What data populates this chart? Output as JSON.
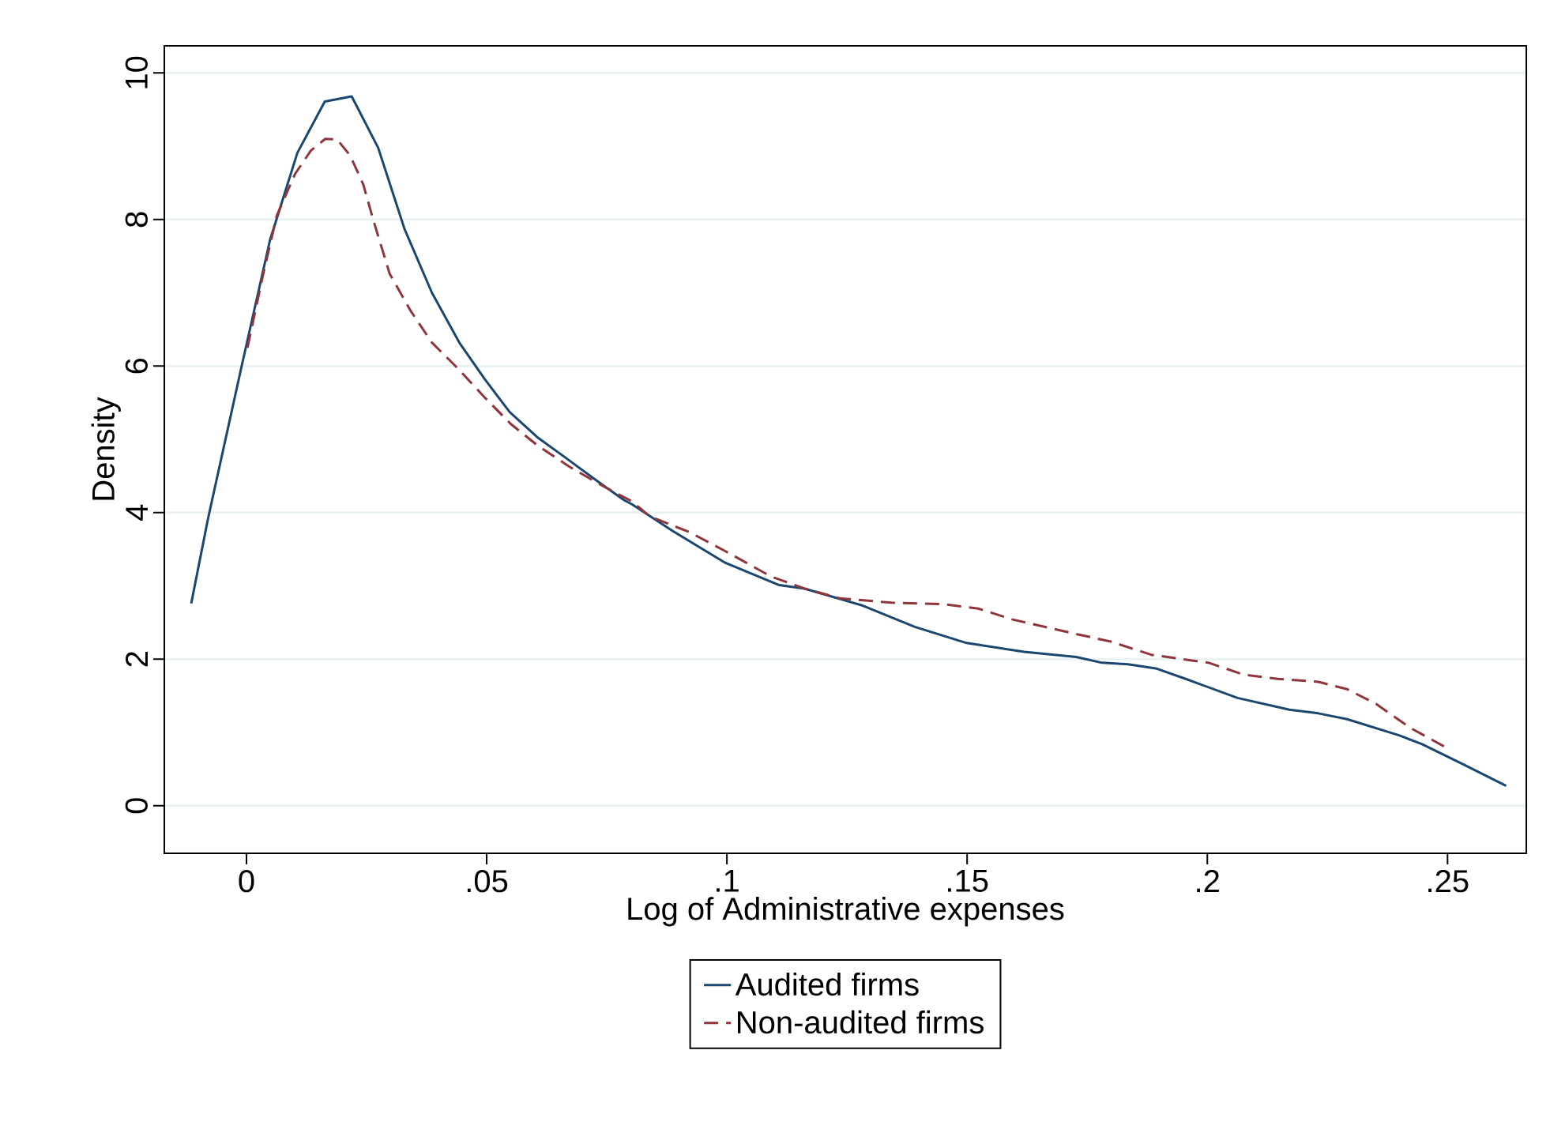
{
  "chart_data": {
    "type": "line",
    "xlabel": "Log of Administrative expenses",
    "ylabel": "Density",
    "xlim": [
      -0.0171,
      0.2664
    ],
    "ylim": [
      -0.65,
      10.37
    ],
    "xticks": [
      {
        "value": 0,
        "label": "0"
      },
      {
        "value": 0.05,
        "label": ".05"
      },
      {
        "value": 0.1,
        "label": ".1"
      },
      {
        "value": 0.15,
        "label": ".15"
      },
      {
        "value": 0.2,
        "label": ".2"
      },
      {
        "value": 0.25,
        "label": ".25"
      }
    ],
    "yticks": [
      0,
      2,
      4,
      6,
      8,
      10
    ],
    "grid": "y",
    "legend": "bottom",
    "series": [
      {
        "name": "Audited firms",
        "color": "#1a476f",
        "line_style": "solid",
        "x": [
          -0.0115,
          -0.008,
          -0.0009,
          0.0049,
          0.0106,
          0.0163,
          0.0219,
          0.0274,
          0.0329,
          0.0386,
          0.0443,
          0.0496,
          0.0548,
          0.0605,
          0.0666,
          0.0726,
          0.0786,
          0.0803,
          0.0887,
          0.0995,
          0.1109,
          0.1163,
          0.1283,
          0.1391,
          0.1499,
          0.1619,
          0.1727,
          0.1781,
          0.1835,
          0.1895,
          0.1955,
          0.2063,
          0.2171,
          0.2231,
          0.2291,
          0.2399,
          0.2447,
          0.2531,
          0.2622
        ],
        "values": [
          2.76,
          3.92,
          6.03,
          7.72,
          8.91,
          9.61,
          9.68,
          8.98,
          7.87,
          7.0,
          6.32,
          5.82,
          5.37,
          5.03,
          4.74,
          4.45,
          4.17,
          4.11,
          3.75,
          3.32,
          3.01,
          2.96,
          2.73,
          2.44,
          2.22,
          2.1,
          2.03,
          1.95,
          1.93,
          1.87,
          1.73,
          1.47,
          1.31,
          1.26,
          1.18,
          0.96,
          0.84,
          0.57,
          0.27
        ]
      },
      {
        "name": "Non-audited firms",
        "color": "#90353b",
        "line_style": "dashed",
        "x": [
          0.0002,
          0.0035,
          0.0063,
          0.0101,
          0.0134,
          0.0164,
          0.0189,
          0.0216,
          0.0243,
          0.0265,
          0.0298,
          0.0342,
          0.0386,
          0.0441,
          0.0496,
          0.055,
          0.0605,
          0.0671,
          0.0737,
          0.0803,
          0.0839,
          0.0923,
          0.0995,
          0.1091,
          0.1163,
          0.1235,
          0.1343,
          0.1451,
          0.1523,
          0.1595,
          0.1715,
          0.1799,
          0.1883,
          0.2003,
          0.2075,
          0.2147,
          0.2231,
          0.2291,
          0.2351,
          0.2423,
          0.2498
        ],
        "values": [
          6.25,
          7.26,
          8.05,
          8.62,
          8.94,
          9.1,
          9.09,
          8.87,
          8.48,
          7.97,
          7.26,
          6.75,
          6.32,
          5.96,
          5.57,
          5.21,
          4.92,
          4.63,
          4.38,
          4.15,
          3.95,
          3.73,
          3.48,
          3.13,
          2.96,
          2.83,
          2.77,
          2.75,
          2.69,
          2.54,
          2.36,
          2.24,
          2.06,
          1.95,
          1.79,
          1.73,
          1.69,
          1.59,
          1.39,
          1.06,
          0.79
        ]
      }
    ]
  }
}
